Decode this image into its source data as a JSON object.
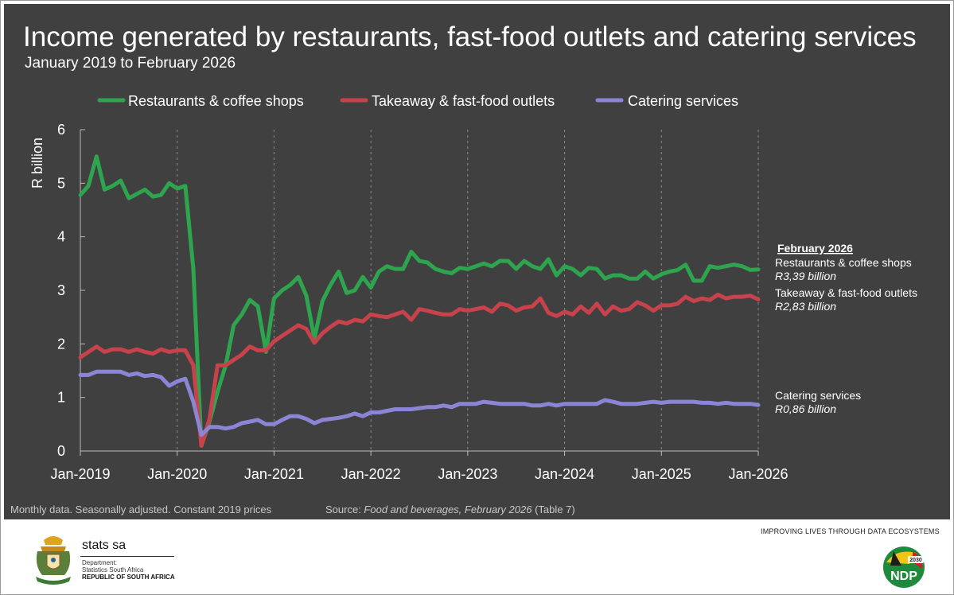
{
  "title": "Income generated by restaurants, fast-food outlets and catering services",
  "subtitle": "January 2019 to February 2026",
  "footnote": "Monthly data. Seasonally adjusted. Constant 2019 prices",
  "source": {
    "prefix": "Source: ",
    "publication": "Food and beverages, February 2026",
    "suffix": " (Table 7)"
  },
  "slogan": "IMPROVING LIVES THROUGH DATA ECOSYSTEMS",
  "brand": {
    "name": "stats sa",
    "dept_line1": "Department:",
    "dept_line2": "Statistics South Africa",
    "dept_line3": "REPUBLIC OF SOUTH AFRICA"
  },
  "ndp_logo": {
    "text": "NDP",
    "year": "2030"
  },
  "annotation": {
    "heading": "February 2026",
    "items": [
      {
        "label": "Restaurants & coffee shops",
        "value": "R3,39 billion"
      },
      {
        "label": "Takeaway & fast-food outlets",
        "value": "R2,83 billion"
      },
      {
        "label": "Catering services",
        "value": "R0,86 billion"
      }
    ]
  },
  "colors": {
    "green": "#2ea44f",
    "red": "#c8424b",
    "purple": "#8c85d6",
    "background": "#404040"
  },
  "chart_data": {
    "type": "line",
    "ylabel": "R billion",
    "xlabel": "",
    "ylim": [
      0,
      6
    ],
    "yticks": [
      0,
      1,
      2,
      3,
      4,
      5,
      6
    ],
    "x_start": "2019-01",
    "x_end": "2026-02",
    "xticks": [
      "Jan-2019",
      "Jan-2020",
      "Jan-2021",
      "Jan-2022",
      "Jan-2023",
      "Jan-2024",
      "Jan-2025",
      "Jan-2026"
    ],
    "legend": "top",
    "grid": "vertical dashed",
    "series": [
      {
        "name": "Restaurants & coffee shops",
        "color": "#2ea44f",
        "values": [
          4.78,
          4.95,
          5.5,
          4.88,
          4.95,
          5.05,
          4.72,
          4.8,
          4.88,
          4.75,
          4.78,
          5.0,
          4.9,
          4.95,
          3.4,
          0.1,
          0.55,
          1.1,
          1.6,
          2.35,
          2.55,
          2.82,
          2.7,
          1.85,
          2.85,
          3.0,
          3.1,
          3.25,
          2.9,
          2.1,
          2.8,
          3.1,
          3.35,
          2.95,
          3.0,
          3.25,
          3.05,
          3.35,
          3.45,
          3.4,
          3.4,
          3.72,
          3.55,
          3.52,
          3.4,
          3.35,
          3.32,
          3.42,
          3.4,
          3.45,
          3.5,
          3.45,
          3.55,
          3.55,
          3.4,
          3.55,
          3.45,
          3.4,
          3.58,
          3.28,
          3.45,
          3.4,
          3.28,
          3.42,
          3.4,
          3.22,
          3.28,
          3.28,
          3.22,
          3.22,
          3.35,
          3.22,
          3.3,
          3.35,
          3.38,
          3.48,
          3.18,
          3.18,
          3.45,
          3.42,
          3.45,
          3.48,
          3.45,
          3.38,
          3.39
        ]
      },
      {
        "name": "Takeaway & fast-food outlets",
        "color": "#c8424b",
        "values": [
          1.75,
          1.85,
          1.95,
          1.85,
          1.9,
          1.9,
          1.85,
          1.9,
          1.85,
          1.82,
          1.9,
          1.85,
          1.88,
          1.88,
          1.6,
          0.1,
          0.6,
          1.6,
          1.6,
          1.7,
          1.8,
          1.95,
          1.88,
          1.88,
          2.05,
          2.15,
          2.25,
          2.35,
          2.28,
          2.02,
          2.2,
          2.32,
          2.42,
          2.38,
          2.45,
          2.42,
          2.55,
          2.52,
          2.5,
          2.55,
          2.6,
          2.45,
          2.65,
          2.62,
          2.58,
          2.55,
          2.55,
          2.65,
          2.62,
          2.65,
          2.68,
          2.6,
          2.75,
          2.72,
          2.62,
          2.68,
          2.7,
          2.85,
          2.58,
          2.52,
          2.6,
          2.55,
          2.7,
          2.58,
          2.75,
          2.55,
          2.7,
          2.62,
          2.65,
          2.78,
          2.72,
          2.62,
          2.72,
          2.72,
          2.75,
          2.88,
          2.8,
          2.85,
          2.82,
          2.92,
          2.85,
          2.88,
          2.88,
          2.9,
          2.83
        ]
      },
      {
        "name": "Catering services",
        "color": "#8c85d6",
        "values": [
          1.42,
          1.42,
          1.48,
          1.48,
          1.48,
          1.48,
          1.42,
          1.45,
          1.4,
          1.42,
          1.38,
          1.22,
          1.3,
          1.35,
          0.92,
          0.3,
          0.45,
          0.45,
          0.42,
          0.45,
          0.52,
          0.55,
          0.58,
          0.5,
          0.5,
          0.58,
          0.65,
          0.65,
          0.6,
          0.52,
          0.58,
          0.6,
          0.62,
          0.65,
          0.7,
          0.65,
          0.72,
          0.72,
          0.75,
          0.78,
          0.78,
          0.78,
          0.8,
          0.82,
          0.82,
          0.85,
          0.82,
          0.88,
          0.88,
          0.88,
          0.92,
          0.9,
          0.88,
          0.88,
          0.88,
          0.88,
          0.85,
          0.85,
          0.88,
          0.85,
          0.88,
          0.88,
          0.88,
          0.88,
          0.88,
          0.95,
          0.92,
          0.88,
          0.88,
          0.88,
          0.9,
          0.92,
          0.9,
          0.92,
          0.92,
          0.92,
          0.92,
          0.9,
          0.9,
          0.88,
          0.9,
          0.88,
          0.88,
          0.88,
          0.86
        ]
      }
    ]
  }
}
